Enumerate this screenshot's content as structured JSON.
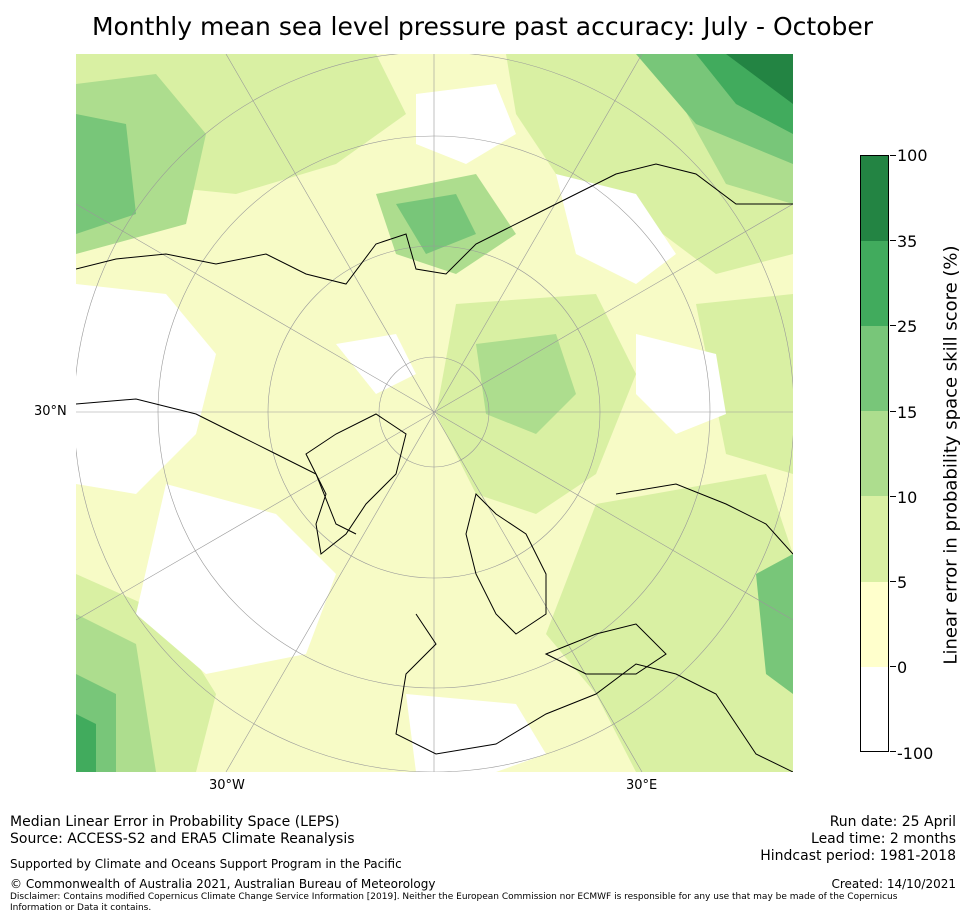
{
  "title": "Monthly mean sea level pressure past accuracy: July - October",
  "map": {
    "projection": "north polar stereographic",
    "lat_label": "30°N",
    "lon_labels": [
      "30°W",
      "30°E"
    ],
    "categories": [
      {
        "range": "-100 to 0",
        "color": "#ffffff"
      },
      {
        "range": "0 to 5",
        "color": "#ffffcc"
      },
      {
        "range": "5 to 10",
        "color": "#d9f0a3"
      },
      {
        "range": "10 to 15",
        "color": "#addd8e"
      },
      {
        "range": "15 to 25",
        "color": "#78c679"
      },
      {
        "range": "25 to 35",
        "color": "#41ab5d"
      },
      {
        "range": "35 to 100",
        "color": "#238443"
      }
    ]
  },
  "colorbar": {
    "title": "Linear error in probability space skill score (%)",
    "ticks": [
      "100",
      "35",
      "25",
      "15",
      "10",
      "5",
      "0",
      "-100"
    ]
  },
  "footer": {
    "left_line1": "Median Linear Error in Probability Space (LEPS)",
    "left_line2": "Source: ACCESS-S2 and ERA5 Climate Reanalysis",
    "support": "Supported by Climate and Oceans Support Program in the Pacific",
    "copyright": "© Commonwealth of Australia 2021, Australian Bureau of Meteorology",
    "disclaimer": "Disclaimer: Contains modified Copernicus Climate Change Service Information [2019]. Neither the European Commission nor ECMWF is responsible for any use that may be made of the Copernicus Information or Data it contains.",
    "run_date": "Run date: 25 April",
    "lead_time": "Lead time: 2 months",
    "hindcast": "Hindcast period: 1981-2018",
    "created": "Created: 14/10/2021"
  }
}
